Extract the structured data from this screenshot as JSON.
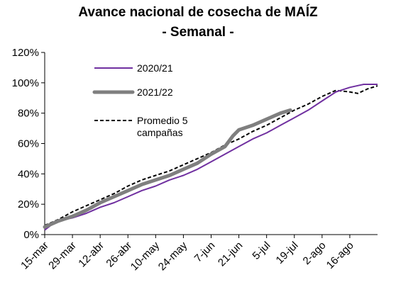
{
  "chart_data": {
    "type": "line",
    "title": "Avance nacional de cosecha de MAÍZ",
    "subtitle": "- Semanal -",
    "xlabel": "",
    "ylabel": "",
    "ylim": [
      0,
      120
    ],
    "y_ticks": [
      "0%",
      "20%",
      "40%",
      "60%",
      "80%",
      "100%",
      "120%"
    ],
    "x_ticks": [
      "15-mar",
      "29-mar",
      "12-abr",
      "26-abr",
      "10-may",
      "24-may",
      "7-jun",
      "21-jun",
      "5-jul",
      "19-jul",
      "2-ago",
      "16-ago"
    ],
    "grid": false,
    "legend_position": "top-left",
    "series": [
      {
        "name": "2020/21",
        "color": "#7030a0",
        "style": "solid",
        "points": [
          [
            0,
            3
          ],
          [
            4,
            7
          ],
          [
            7,
            9
          ],
          [
            14,
            11
          ],
          [
            21,
            14
          ],
          [
            28,
            18
          ],
          [
            35,
            21
          ],
          [
            42,
            25
          ],
          [
            49,
            29
          ],
          [
            56,
            32
          ],
          [
            63,
            36
          ],
          [
            70,
            39
          ],
          [
            77,
            43
          ],
          [
            84,
            48
          ],
          [
            91,
            53
          ],
          [
            98,
            58
          ],
          [
            105,
            63
          ],
          [
            112,
            67
          ],
          [
            119,
            72
          ],
          [
            126,
            77
          ],
          [
            133,
            82
          ],
          [
            140,
            88
          ],
          [
            147,
            94
          ],
          [
            154,
            97
          ],
          [
            161,
            99
          ],
          [
            168,
            99
          ]
        ]
      },
      {
        "name": "2021/22",
        "color": "#7f7f7f",
        "style": "thick",
        "points": [
          [
            0,
            5
          ],
          [
            7,
            9
          ],
          [
            14,
            12
          ],
          [
            21,
            16
          ],
          [
            28,
            21
          ],
          [
            35,
            25
          ],
          [
            42,
            29
          ],
          [
            49,
            33
          ],
          [
            56,
            36
          ],
          [
            63,
            39
          ],
          [
            70,
            43
          ],
          [
            77,
            47
          ],
          [
            84,
            53
          ],
          [
            91,
            58
          ],
          [
            95,
            65
          ],
          [
            98,
            69
          ],
          [
            105,
            72
          ],
          [
            112,
            76
          ],
          [
            119,
            80
          ],
          [
            124,
            82
          ]
        ]
      },
      {
        "name": "Promedio 5 campañas",
        "color": "#000000",
        "style": "dashed",
        "points": [
          [
            0,
            6
          ],
          [
            7,
            10
          ],
          [
            14,
            15
          ],
          [
            21,
            19
          ],
          [
            28,
            23
          ],
          [
            35,
            27
          ],
          [
            42,
            32
          ],
          [
            49,
            36
          ],
          [
            56,
            39
          ],
          [
            63,
            42
          ],
          [
            70,
            46
          ],
          [
            77,
            50
          ],
          [
            84,
            54
          ],
          [
            91,
            59
          ],
          [
            98,
            63
          ],
          [
            105,
            68
          ],
          [
            112,
            72
          ],
          [
            119,
            77
          ],
          [
            126,
            82
          ],
          [
            133,
            86
          ],
          [
            140,
            91
          ],
          [
            147,
            95
          ],
          [
            154,
            94
          ],
          [
            158,
            93
          ],
          [
            163,
            96
          ],
          [
            168,
            98
          ]
        ]
      }
    ],
    "x_range_days": [
      0,
      168
    ],
    "x_tick_spacing_days": 14
  }
}
